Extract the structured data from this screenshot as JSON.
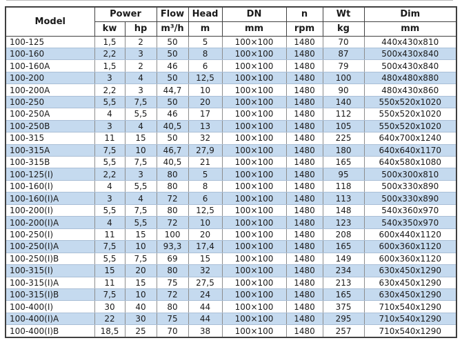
{
  "table": {
    "column_names": [
      "model",
      "power-kw",
      "power-hp",
      "flow",
      "head",
      "dn",
      "n",
      "wt",
      "dim"
    ],
    "header": {
      "model": "Model",
      "power_group": "Power",
      "power_kw": "kw",
      "power_hp": "hp",
      "flow": "Flow",
      "flow_unit": "m³/h",
      "head": "Head",
      "head_unit": "m",
      "dn": "DN",
      "dn_unit": "mm",
      "n": "n",
      "n_unit": "rpm",
      "wt": "Wt",
      "wt_unit": "kg",
      "dim": "Dim",
      "dim_unit": "mm"
    },
    "rows": [
      [
        "100-125",
        "1,5",
        "2",
        "50",
        "5",
        "100×100",
        "1480",
        "70",
        "440x430x810"
      ],
      [
        "100-160",
        "2,2",
        "3",
        "50",
        "8",
        "100×100",
        "1480",
        "87",
        "500x430x840"
      ],
      [
        "100-160A",
        "1,5",
        "2",
        "46",
        "6",
        "100×100",
        "1480",
        "79",
        "500x430x840"
      ],
      [
        "100-200",
        "3",
        "4",
        "50",
        "12,5",
        "100×100",
        "1480",
        "100",
        "480x480x880"
      ],
      [
        "100-200A",
        "2,2",
        "3",
        "44,7",
        "10",
        "100×100",
        "1480",
        "90",
        "480x430x860"
      ],
      [
        "100-250",
        "5,5",
        "7,5",
        "50",
        "20",
        "100×100",
        "1480",
        "140",
        "550x520x1020"
      ],
      [
        "100-250A",
        "4",
        "5,5",
        "46",
        "17",
        "100×100",
        "1480",
        "112",
        "550x520x1020"
      ],
      [
        "100-250B",
        "3",
        "4",
        "40,5",
        "13",
        "100×100",
        "1480",
        "105",
        "550x520x1020"
      ],
      [
        "100-315",
        "11",
        "15",
        "50",
        "32",
        "100×100",
        "1480",
        "225",
        "640x700x1240"
      ],
      [
        "100-315A",
        "7,5",
        "10",
        "46,7",
        "27,9",
        "100×100",
        "1480",
        "180",
        "640x640x1170"
      ],
      [
        "100-315B",
        "5,5",
        "7,5",
        "40,5",
        "21",
        "100×100",
        "1480",
        "165",
        "640x580x1080"
      ],
      [
        "100-125(I)",
        "2,2",
        "3",
        "80",
        "5",
        "100×100",
        "1480",
        "95",
        "500x300x810"
      ],
      [
        "100-160(I)",
        "4",
        "5,5",
        "80",
        "8",
        "100×100",
        "1480",
        "118",
        "500x330x890"
      ],
      [
        "100-160(I)A",
        "3",
        "4",
        "72",
        "6",
        "100×100",
        "1480",
        "113",
        "500x330x890"
      ],
      [
        "100-200(I)",
        "5,5",
        "7,5",
        "80",
        "12,5",
        "100×100",
        "1480",
        "148",
        "540x360x970"
      ],
      [
        "100-200(I)A",
        "4",
        "5,5",
        "72",
        "10",
        "100×100",
        "1480",
        "123",
        "540x350x970"
      ],
      [
        "100-250(I)",
        "11",
        "15",
        "100",
        "20",
        "100×100",
        "1480",
        "208",
        "600x440x1120"
      ],
      [
        "100-250(I)A",
        "7,5",
        "10",
        "93,3",
        "17,4",
        "100×100",
        "1480",
        "165",
        "600x360x1120"
      ],
      [
        "100-250(I)B",
        "5,5",
        "7,5",
        "69",
        "15",
        "100×100",
        "1480",
        "149",
        "600x360x1120"
      ],
      [
        "100-315(I)",
        "15",
        "20",
        "80",
        "32",
        "100×100",
        "1480",
        "234",
        "630x450x1290"
      ],
      [
        "100-315(I)A",
        "11",
        "15",
        "75",
        "27,5",
        "100×100",
        "1480",
        "213",
        "630x450x1290"
      ],
      [
        "100-315(I)B",
        "7,5",
        "10",
        "72",
        "24",
        "100×100",
        "1480",
        "165",
        "630x450x1290"
      ],
      [
        "100-400(I)",
        "30",
        "40",
        "80",
        "44",
        "100×100",
        "1480",
        "375",
        "710x540x1290"
      ],
      [
        "100-400(I)A",
        "22",
        "30",
        "75",
        "44",
        "100×100",
        "1480",
        "295",
        "710x540x1290"
      ],
      [
        "100-400(I)B",
        "18,5",
        "25",
        "70",
        "38",
        "100×100",
        "1480",
        "257",
        "710x540x1290"
      ]
    ]
  },
  "colors": {
    "alt_row_bg": "#c5daef",
    "base_row_bg": "#ffffff",
    "outer_border": "#3f3f3f",
    "vertical_border": "#8c8c8c",
    "horizontal_border": "#a9bed6",
    "text": "#1a1a1a",
    "top_rule": "#b9b9b9"
  }
}
